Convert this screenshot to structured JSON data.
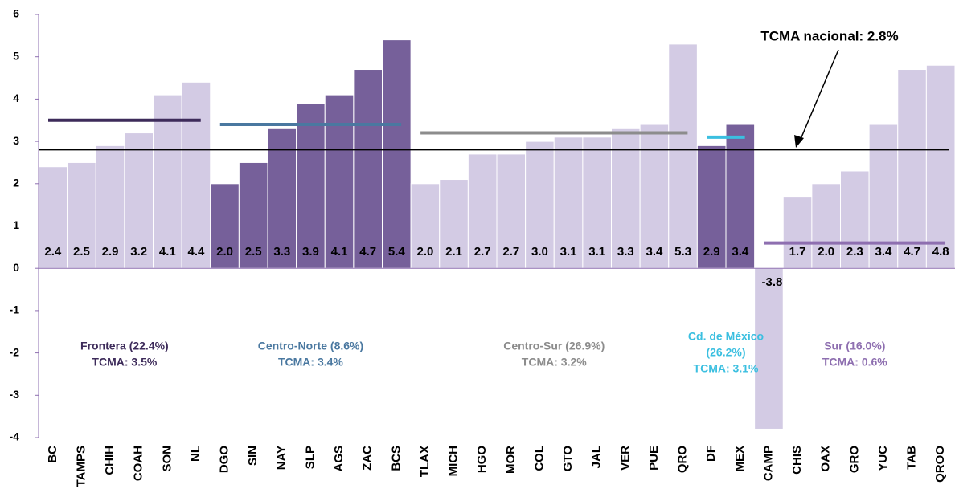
{
  "chart_data": {
    "type": "bar",
    "categories": [
      "BC",
      "TAMPS",
      "CHIH",
      "COAH",
      "SON",
      "NL",
      "DGO",
      "SIN",
      "NAY",
      "SLP",
      "AGS",
      "ZAC",
      "BCS",
      "TLAX",
      "MICH",
      "HGO",
      "MOR",
      "COL",
      "GTO",
      "JAL",
      "VER",
      "PUE",
      "QRO",
      "DF",
      "MEX",
      "CAMP",
      "CHIS",
      "OAX",
      "GRO",
      "YUC",
      "TAB",
      "QROO"
    ],
    "values": [
      2.4,
      2.5,
      2.9,
      3.2,
      4.1,
      4.4,
      2.0,
      2.5,
      3.3,
      3.9,
      4.1,
      4.7,
      5.4,
      2.0,
      2.1,
      2.7,
      2.7,
      3.0,
      3.1,
      3.1,
      3.3,
      3.4,
      5.3,
      2.9,
      3.4,
      -3.8,
      1.7,
      2.0,
      2.3,
      3.4,
      4.7,
      4.8
    ],
    "value_labels": [
      "2.4",
      "2.5",
      "2.9",
      "3.2",
      "4.1",
      "4.4",
      "2.0",
      "2.5",
      "3.3",
      "3.9",
      "4.1",
      "4.7",
      "5.4",
      "2.0",
      "2.1",
      "2.7",
      "2.7",
      "3.0",
      "3.1",
      "3.1",
      "3.3",
      "3.4",
      "5.3",
      "2.9",
      "3.4",
      "-3.8",
      "1.7",
      "2.0",
      "2.3",
      "3.4",
      "4.7",
      "4.8"
    ],
    "colors": [
      "#d3cbe4",
      "#d3cbe4",
      "#d3cbe4",
      "#d3cbe4",
      "#d3cbe4",
      "#d3cbe4",
      "#76609a",
      "#76609a",
      "#76609a",
      "#76609a",
      "#76609a",
      "#76609a",
      "#76609a",
      "#d3cbe4",
      "#d3cbe4",
      "#d3cbe4",
      "#d3cbe4",
      "#d3cbe4",
      "#d3cbe4",
      "#d3cbe4",
      "#d3cbe4",
      "#d3cbe4",
      "#d3cbe4",
      "#76609a",
      "#76609a",
      "#d3cbe4",
      "#d3cbe4",
      "#d3cbe4",
      "#d3cbe4",
      "#d3cbe4",
      "#d3cbe4",
      "#d3cbe4"
    ],
    "ylim": [
      -4,
      6
    ],
    "yticks": [
      -4,
      -3,
      -2,
      -1,
      0,
      1,
      2,
      3,
      4,
      5,
      6
    ],
    "regions": [
      {
        "label": [
          "Frontera (22.4%)",
          "TCMA: 3.5%"
        ],
        "value": 3.5,
        "start": 0,
        "end": 5,
        "color": "#3d2b5a"
      },
      {
        "label": [
          "Centro-Norte (8.6%)",
          "TCMA: 3.4%"
        ],
        "value": 3.4,
        "start": 6,
        "end": 12,
        "color": "#4a78a0"
      },
      {
        "label": [
          "Centro-Sur (26.9%)",
          "TCMA: 3.2%"
        ],
        "value": 3.2,
        "start": 13,
        "end": 22,
        "color": "#8c8c8c"
      },
      {
        "label": [
          "Cd. de México",
          "(26.2%)",
          "TCMA: 3.1%"
        ],
        "value": 3.1,
        "start": 23,
        "end": 24,
        "color": "#3bbfe0"
      },
      {
        "label": [
          "Sur (16.0%)",
          "TCMA: 0.6%"
        ],
        "value": 0.6,
        "start": 25,
        "end": 31,
        "color": "#8e6fb0"
      }
    ],
    "national": {
      "label": "TCMA nacional: 2.8%",
      "value": 2.8,
      "color": "#000000"
    }
  }
}
